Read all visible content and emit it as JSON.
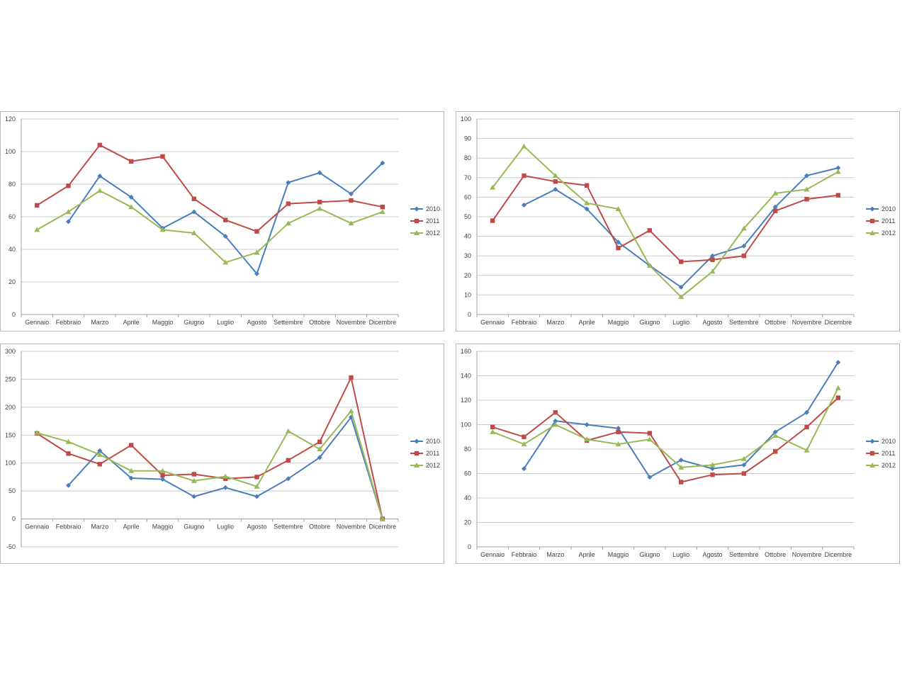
{
  "colors": {
    "2010": "#4a7ebb",
    "2011": "#be4b48",
    "2012": "#98b954"
  },
  "chart_data": [
    {
      "type": "line",
      "categories": [
        "Gennaio",
        "Febbraio",
        "Marzo",
        "Aprile",
        "Maggio",
        "Giugno",
        "Luglio",
        "Agosto",
        "Settembre",
        "Ottobre",
        "Novembre",
        "Dicembre"
      ],
      "ylim": [
        0,
        120
      ],
      "ystep": 20,
      "grid": true,
      "legend": "right",
      "series": [
        {
          "name": "2010",
          "marker": "diamond",
          "values": [
            null,
            57,
            85,
            72,
            53,
            63,
            48,
            25,
            81,
            87,
            74,
            93
          ]
        },
        {
          "name": "2011",
          "marker": "square",
          "values": [
            67,
            79,
            104,
            94,
            97,
            71,
            58,
            51,
            68,
            69,
            70,
            66
          ]
        },
        {
          "name": "2012",
          "marker": "triangle",
          "values": [
            52,
            63,
            76,
            66,
            52,
            50,
            32,
            38,
            56,
            65,
            56,
            63
          ]
        }
      ]
    },
    {
      "type": "line",
      "categories": [
        "Gennaio",
        "Febbraio",
        "Marzo",
        "Aprile",
        "Maggio",
        "Giugno",
        "Luglio",
        "Agosto",
        "Settembre",
        "Ottobre",
        "Novembre",
        "Dicembre"
      ],
      "ylim": [
        0,
        100
      ],
      "ystep": 10,
      "grid": true,
      "legend": "right",
      "series": [
        {
          "name": "2010",
          "marker": "diamond",
          "values": [
            null,
            56,
            64,
            54,
            37,
            25,
            14,
            30,
            35,
            55,
            71,
            75
          ]
        },
        {
          "name": "2011",
          "marker": "square",
          "values": [
            48,
            71,
            68,
            66,
            34,
            43,
            27,
            28,
            30,
            53,
            59,
            61
          ]
        },
        {
          "name": "2012",
          "marker": "triangle",
          "values": [
            65,
            86,
            71,
            57,
            54,
            25,
            9,
            22,
            44,
            62,
            64,
            73
          ]
        }
      ]
    },
    {
      "type": "line",
      "categories": [
        "Gennaio",
        "Febbraio",
        "Marzo",
        "Aprile",
        "Maggio",
        "Giugno",
        "Luglio",
        "Agosto",
        "Settembre",
        "Ottobre",
        "Novembre",
        "Dicembre"
      ],
      "ylim": [
        -50,
        300
      ],
      "ystep": 50,
      "grid": true,
      "legend": "right",
      "series": [
        {
          "name": "2010",
          "marker": "diamond",
          "values": [
            null,
            60,
            122,
            73,
            71,
            40,
            56,
            40,
            72,
            110,
            182,
            0
          ]
        },
        {
          "name": "2011",
          "marker": "square",
          "values": [
            153,
            117,
            98,
            132,
            78,
            80,
            72,
            75,
            105,
            138,
            253,
            0
          ]
        },
        {
          "name": "2012",
          "marker": "triangle",
          "values": [
            154,
            138,
            115,
            86,
            86,
            68,
            76,
            58,
            157,
            125,
            193,
            0
          ]
        }
      ]
    },
    {
      "type": "line",
      "categories": [
        "Gennaio",
        "Febbraio",
        "Marzo",
        "Aprile",
        "Maggio",
        "Giugno",
        "Luglio",
        "Agosto",
        "Settembre",
        "Ottobre",
        "Novembre",
        "Dicembre"
      ],
      "ylim": [
        0,
        160
      ],
      "ystep": 20,
      "grid": true,
      "legend": "right",
      "series": [
        {
          "name": "2010",
          "marker": "diamond",
          "values": [
            null,
            64,
            103,
            100,
            97,
            57,
            71,
            64,
            67,
            94,
            110,
            151
          ]
        },
        {
          "name": "2011",
          "marker": "square",
          "values": [
            98,
            90,
            110,
            87,
            94,
            93,
            53,
            59,
            60,
            78,
            98,
            122
          ]
        },
        {
          "name": "2012",
          "marker": "triangle",
          "values": [
            94,
            84,
            100,
            88,
            84,
            88,
            65,
            67,
            72,
            91,
            79,
            130
          ]
        }
      ]
    }
  ]
}
